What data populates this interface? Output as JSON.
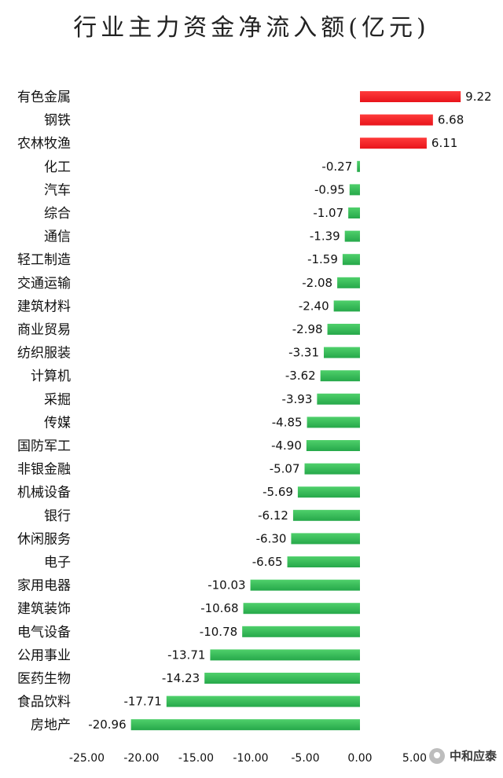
{
  "chart_data": {
    "type": "bar",
    "orientation": "horizontal",
    "title": "行业主力资金净流入额(亿元)",
    "categories": [
      "有色金属",
      "钢铁",
      "农林牧渔",
      "化工",
      "汽车",
      "综合",
      "通信",
      "轻工制造",
      "交通运输",
      "建筑材料",
      "商业贸易",
      "纺织服装",
      "计算机",
      "采掘",
      "传媒",
      "国防军工",
      "非银金融",
      "机械设备",
      "银行",
      "休闲服务",
      "电子",
      "家用电器",
      "建筑装饰",
      "电气设备",
      "公用事业",
      "医药生物",
      "食品饮料",
      "房地产"
    ],
    "values": [
      9.22,
      6.68,
      6.11,
      -0.27,
      -0.95,
      -1.07,
      -1.39,
      -1.59,
      -2.08,
      -2.4,
      -2.98,
      -3.31,
      -3.62,
      -3.93,
      -4.85,
      -4.9,
      -5.07,
      -5.69,
      -6.12,
      -6.3,
      -6.65,
      -10.03,
      -10.68,
      -10.78,
      -13.71,
      -14.23,
      -17.71,
      -20.96
    ],
    "value_labels": [
      "9.22",
      "6.68",
      "6.11",
      "-0.27",
      "-0.95",
      "-1.07",
      "-1.39",
      "-1.59",
      "-2.08",
      "-2.40",
      "-2.98",
      "-3.31",
      "-3.62",
      "-3.93",
      "-4.85",
      "-4.90",
      "-5.07",
      "-5.69",
      "-6.12",
      "-6.30",
      "-6.65",
      "-10.03",
      "-10.68",
      "-10.78",
      "-13.71",
      "-14.23",
      "-17.71",
      "-20.96"
    ],
    "xticks": [
      "-25.00",
      "-20.00",
      "-15.00",
      "-10.00",
      "-5.00",
      "0.00",
      "5.00"
    ],
    "xtick_values": [
      -25,
      -20,
      -15,
      -10,
      -5,
      0,
      5
    ],
    "xlim": [
      -25,
      5
    ],
    "grid": false,
    "legend": "none",
    "colors": {
      "positive": "#e8141b",
      "negative": "#26a84a"
    }
  },
  "watermark": {
    "text": "中和应泰",
    "icon": "wechat-icon"
  }
}
